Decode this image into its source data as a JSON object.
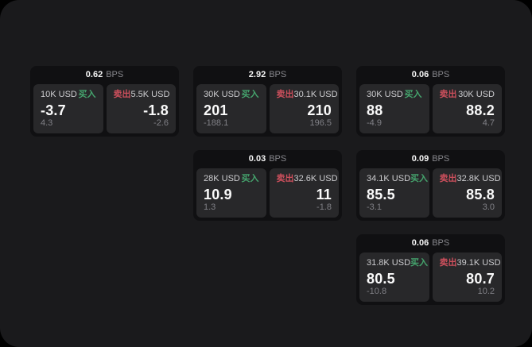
{
  "labels": {
    "bps_unit": "BPS",
    "buy": "买入",
    "sell": "卖出"
  },
  "colors": {
    "page_background": "#000000",
    "surface": "#1a1a1c",
    "card_background": "#101012",
    "tile_background": "#28282a",
    "buy_green": "#45a46d",
    "sell_red": "#cc4f5c"
  },
  "cards": [
    {
      "bps": "0.62",
      "buy": {
        "amount": "10K USD",
        "price": "-3.7",
        "delta": "4.3"
      },
      "sell": {
        "amount": "5.5K USD",
        "price": "-1.8",
        "delta": "-2.6"
      }
    },
    {
      "bps": "2.92",
      "buy": {
        "amount": "30K USD",
        "price": "201",
        "delta": "-188.1"
      },
      "sell": {
        "amount": "30.1K USD",
        "price": "210",
        "delta": "196.5"
      }
    },
    {
      "bps": "0.06",
      "buy": {
        "amount": "30K USD",
        "price": "88",
        "delta": "-4.9"
      },
      "sell": {
        "amount": "30K USD",
        "price": "88.2",
        "delta": "4.7"
      }
    },
    {
      "bps": "0.03",
      "buy": {
        "amount": "28K USD",
        "price": "10.9",
        "delta": "1.3"
      },
      "sell": {
        "amount": "32.6K USD",
        "price": "11",
        "delta": "-1.8"
      }
    },
    {
      "bps": "0.09",
      "buy": {
        "amount": "34.1K USD",
        "price": "85.5",
        "delta": "-3.1"
      },
      "sell": {
        "amount": "32.8K USD",
        "price": "85.8",
        "delta": "3.0"
      }
    },
    {
      "bps": "0.06",
      "buy": {
        "amount": "31.8K USD",
        "price": "80.5",
        "delta": "-10.8"
      },
      "sell": {
        "amount": "39.1K USD",
        "price": "80.7",
        "delta": "10.2"
      }
    }
  ]
}
